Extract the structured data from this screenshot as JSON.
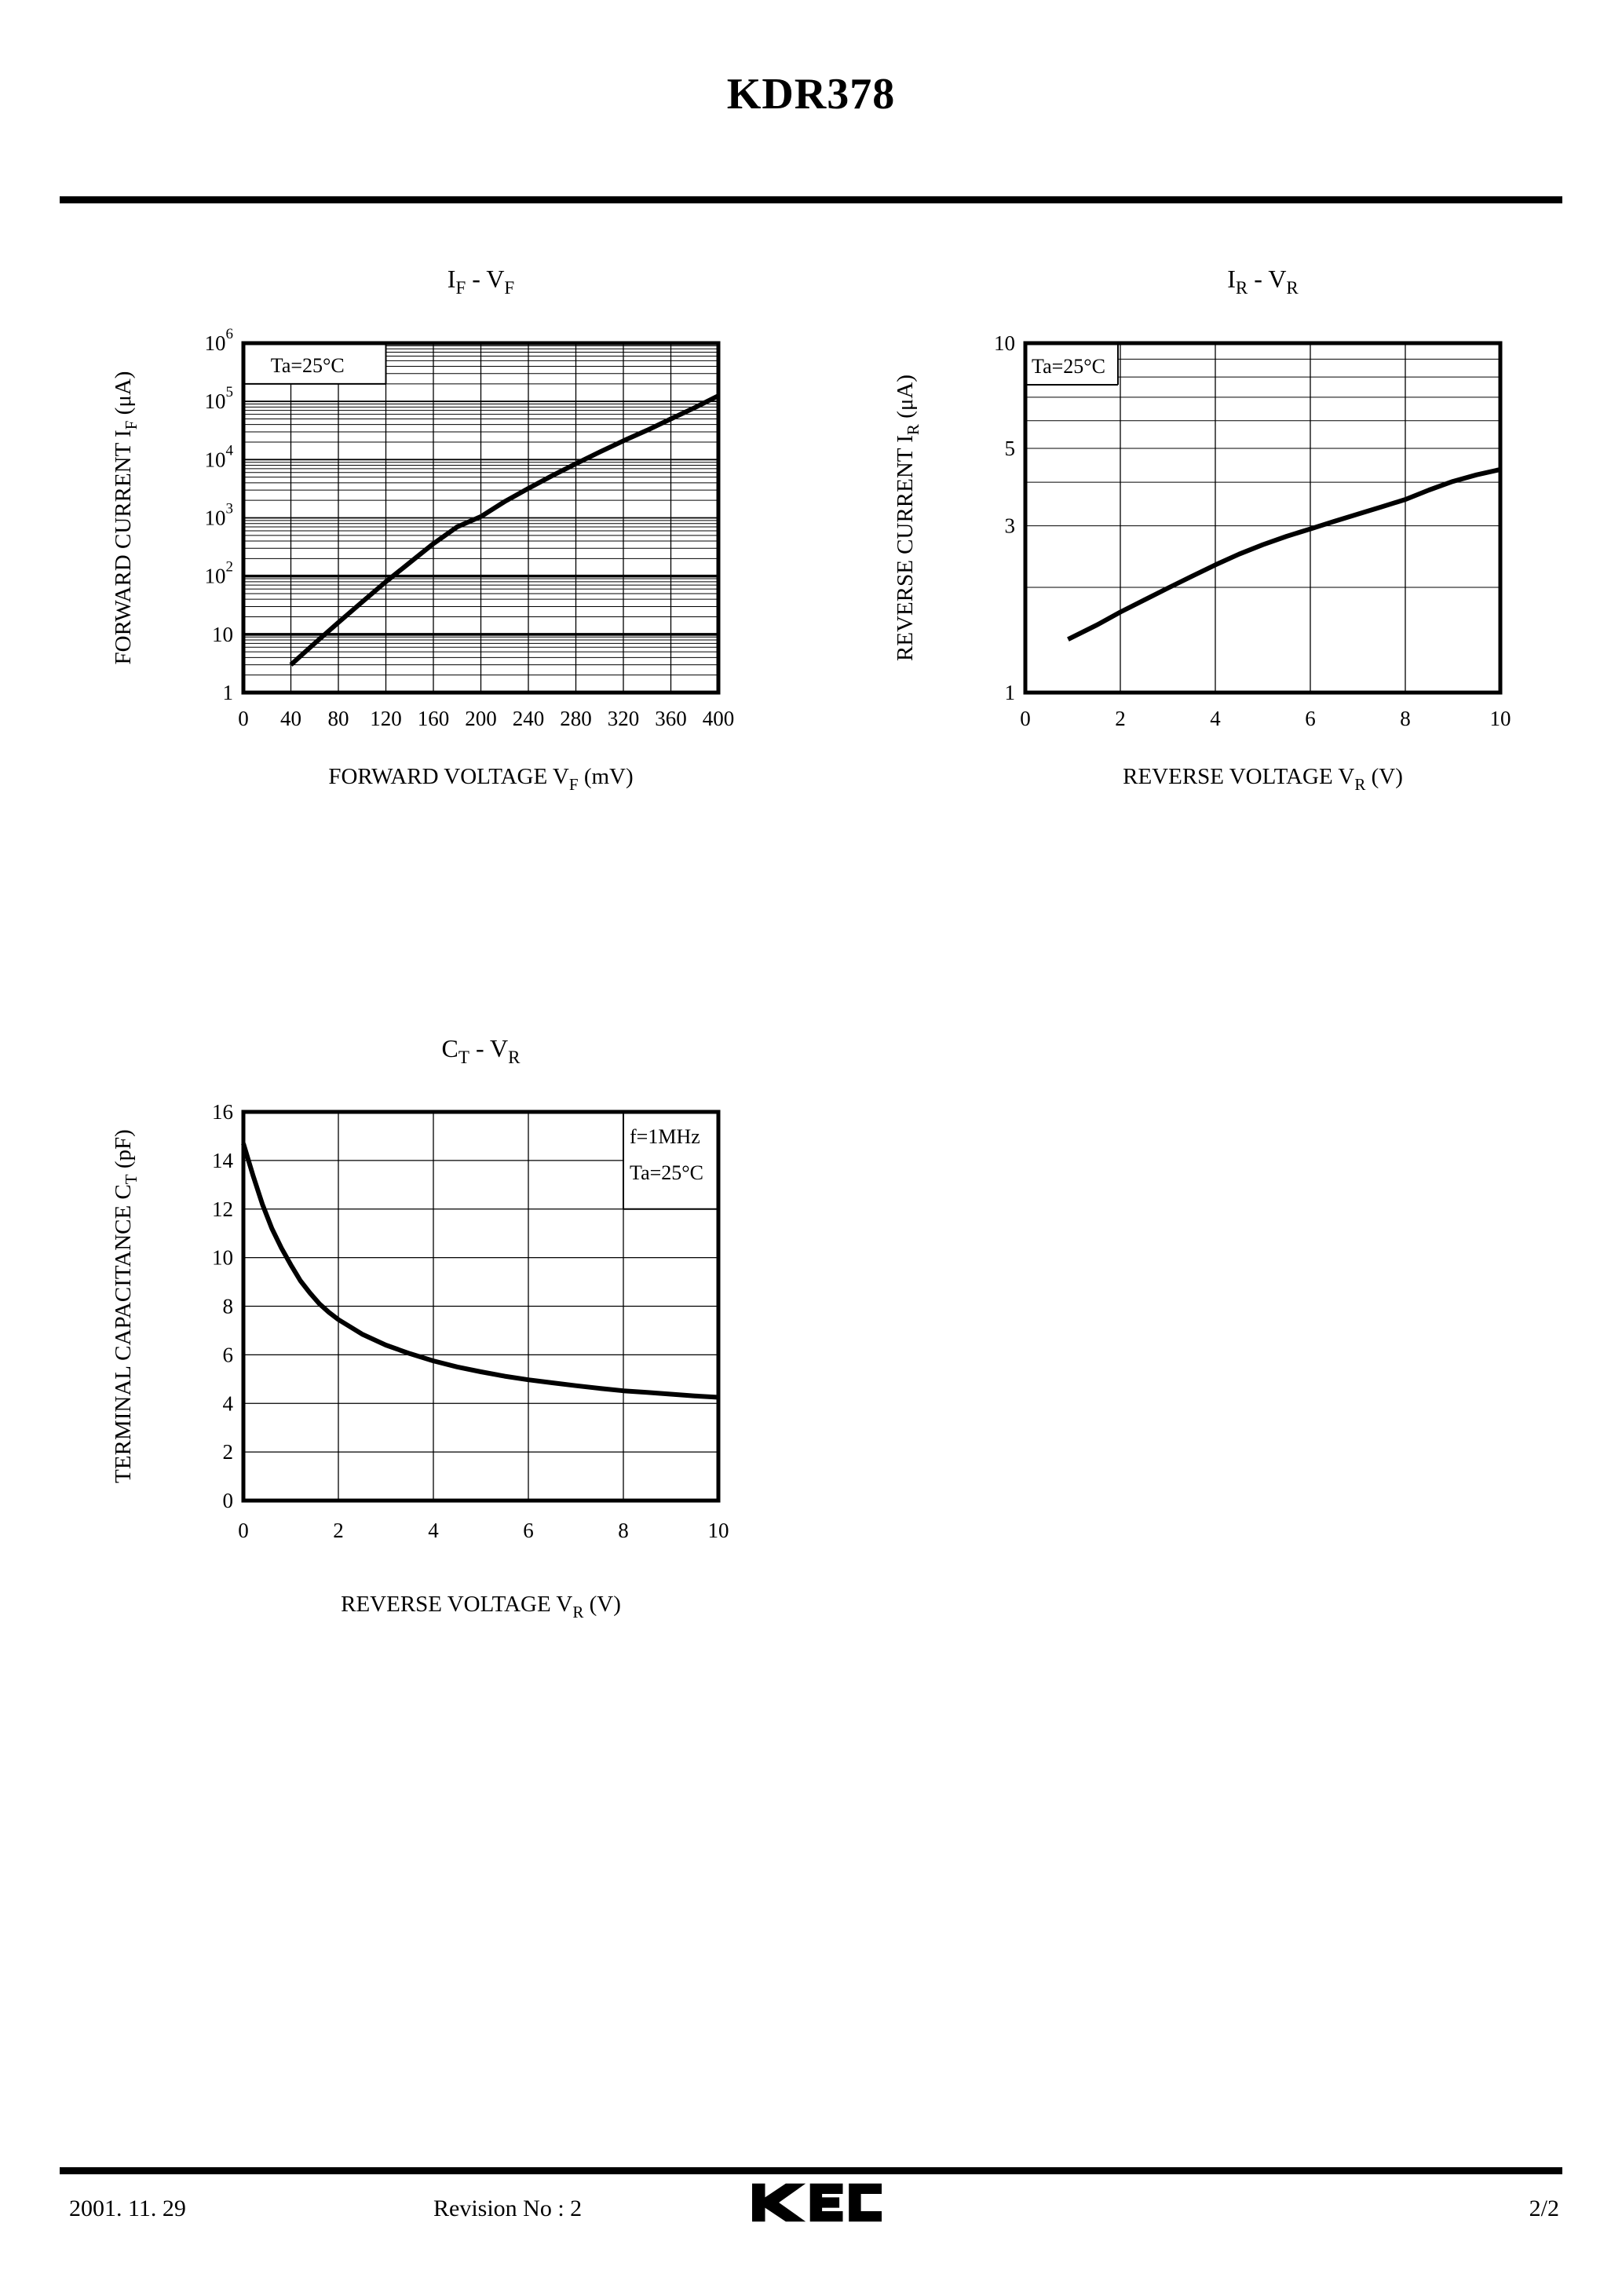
{
  "doc": {
    "title": "KDR378",
    "date": "2001. 11. 29",
    "revision": "Revision No : 2",
    "logo": "KEC",
    "page": "2/2"
  },
  "chart_data": [
    {
      "id": "if-vf",
      "type": "line",
      "title_parts": [
        [
          "I",
          ""
        ],
        [
          "F",
          "sub"
        ],
        [
          "  -  ",
          ""
        ],
        [
          "V",
          ""
        ],
        [
          "F",
          "sub"
        ]
      ],
      "xlabel_parts": [
        [
          "FORWARD VOLTAGE V",
          ""
        ],
        [
          "F",
          "sub"
        ],
        [
          "  (mV)",
          ""
        ]
      ],
      "ylabel_parts": [
        [
          "FORWARD CURRENT I",
          ""
        ],
        [
          "F",
          "sub"
        ],
        [
          "  (μA)",
          ""
        ]
      ],
      "xlim": [
        0,
        400
      ],
      "x_ticks": [
        {
          "v": 0,
          "t": "0"
        },
        {
          "v": 40,
          "t": "40"
        },
        {
          "v": 80,
          "t": "80"
        },
        {
          "v": 120,
          "t": "120"
        },
        {
          "v": 160,
          "t": "160"
        },
        {
          "v": 200,
          "t": "200"
        },
        {
          "v": 240,
          "t": "240"
        },
        {
          "v": 280,
          "t": "280"
        },
        {
          "v": 320,
          "t": "320"
        },
        {
          "v": 360,
          "t": "360"
        },
        {
          "v": 400,
          "t": "400"
        }
      ],
      "x_grid": [
        40,
        80,
        120,
        160,
        200,
        240,
        280,
        320,
        360
      ],
      "y_scale": "log",
      "ylim": [
        1,
        1000000
      ],
      "y_ticks": [
        {
          "v": 1000000,
          "t": "10",
          "sup": "6"
        },
        {
          "v": 100000,
          "t": "10",
          "sup": "5"
        },
        {
          "v": 10000,
          "t": "10",
          "sup": "4"
        },
        {
          "v": 1000,
          "t": "10",
          "sup": "3"
        },
        {
          "v": 100,
          "t": "10",
          "sup": "2"
        },
        {
          "v": 10,
          "t": "10"
        },
        {
          "v": 1,
          "t": "1"
        }
      ],
      "y_major_grid": [
        10,
        100,
        1000,
        10000,
        100000
      ],
      "y_thick_grid": [
        10,
        100
      ],
      "log_minor_grid": true,
      "annotation": {
        "x": [
          0,
          120
        ],
        "y": [
          200000,
          1000000
        ],
        "lines": [
          "Ta=25°C"
        ],
        "borders": "rb"
      },
      "series": [
        {
          "name": "IF",
          "points": [
            [
              40,
              3
            ],
            [
              60,
              7
            ],
            [
              80,
              16
            ],
            [
              100,
              36
            ],
            [
              120,
              80
            ],
            [
              140,
              170
            ],
            [
              160,
              360
            ],
            [
              180,
              700
            ],
            [
              200,
              1050
            ],
            [
              220,
              1900
            ],
            [
              240,
              3200
            ],
            [
              260,
              5300
            ],
            [
              280,
              8500
            ],
            [
              300,
              13500
            ],
            [
              320,
              21000
            ],
            [
              340,
              32000
            ],
            [
              360,
              50000
            ],
            [
              380,
              78000
            ],
            [
              400,
              125000
            ]
          ]
        }
      ]
    },
    {
      "id": "ir-vr",
      "type": "line",
      "title_parts": [
        [
          "I",
          ""
        ],
        [
          "R",
          "sub"
        ],
        [
          "  -  ",
          ""
        ],
        [
          "V",
          ""
        ],
        [
          "R",
          "sub"
        ]
      ],
      "xlabel_parts": [
        [
          "REVERSE VOLTAGE V",
          ""
        ],
        [
          "R",
          "sub"
        ],
        [
          "  (V)",
          ""
        ]
      ],
      "ylabel_parts": [
        [
          "REVERSE CURRENT I",
          ""
        ],
        [
          "R",
          "sub"
        ],
        [
          "  (μA)",
          ""
        ]
      ],
      "xlim": [
        0,
        10
      ],
      "x_ticks": [
        {
          "v": 0,
          "t": "0"
        },
        {
          "v": 2,
          "t": "2"
        },
        {
          "v": 4,
          "t": "4"
        },
        {
          "v": 6,
          "t": "6"
        },
        {
          "v": 8,
          "t": "8"
        },
        {
          "v": 10,
          "t": "10"
        }
      ],
      "x_grid": [
        2,
        4,
        6,
        8
      ],
      "y_scale": "log",
      "ylim": [
        1,
        10
      ],
      "y_ticks": [
        {
          "v": 10,
          "t": "10"
        },
        {
          "v": 5,
          "t": "5"
        },
        {
          "v": 3,
          "t": "3"
        },
        {
          "v": 1,
          "t": "1"
        }
      ],
      "y_major_grid": [],
      "y_thick_grid": [],
      "log_minor_grid": true,
      "annotation": {
        "x": [
          0,
          1.95
        ],
        "y": [
          7.6,
          10
        ],
        "lines": [
          "Ta=25°C"
        ],
        "borders": "rb"
      },
      "series": [
        {
          "name": "IR",
          "points": [
            [
              0.9,
              1.42
            ],
            [
              1.5,
              1.56
            ],
            [
              2,
              1.7
            ],
            [
              2.5,
              1.84
            ],
            [
              3,
              1.99
            ],
            [
              3.5,
              2.15
            ],
            [
              4,
              2.32
            ],
            [
              4.5,
              2.49
            ],
            [
              5,
              2.65
            ],
            [
              5.5,
              2.8
            ],
            [
              6,
              2.94
            ],
            [
              6.5,
              3.09
            ],
            [
              7,
              3.24
            ],
            [
              7.5,
              3.4
            ],
            [
              8,
              3.57
            ],
            [
              8.5,
              3.8
            ],
            [
              9,
              4.02
            ],
            [
              9.5,
              4.2
            ],
            [
              10,
              4.35
            ]
          ]
        }
      ]
    },
    {
      "id": "ct-vr",
      "type": "line",
      "title_parts": [
        [
          "C",
          ""
        ],
        [
          "T",
          "sub"
        ],
        [
          "  -  ",
          ""
        ],
        [
          "V",
          ""
        ],
        [
          "R",
          "sub"
        ]
      ],
      "xlabel_parts": [
        [
          "REVERSE VOLTAGE V",
          ""
        ],
        [
          "R",
          "sub"
        ],
        [
          "  (V)",
          ""
        ]
      ],
      "ylabel_parts": [
        [
          "TERMINAL CAPACITANCE C",
          ""
        ],
        [
          "T",
          "sub"
        ],
        [
          "  (pF)",
          ""
        ]
      ],
      "xlim": [
        0,
        10
      ],
      "x_ticks": [
        {
          "v": 0,
          "t": "0"
        },
        {
          "v": 2,
          "t": "2"
        },
        {
          "v": 4,
          "t": "4"
        },
        {
          "v": 6,
          "t": "6"
        },
        {
          "v": 8,
          "t": "8"
        },
        {
          "v": 10,
          "t": "10"
        }
      ],
      "x_grid": [
        2,
        4,
        6,
        8
      ],
      "y_scale": "linear",
      "ylim": [
        0,
        16
      ],
      "y_ticks": [
        {
          "v": 16,
          "t": "16"
        },
        {
          "v": 14,
          "t": "14"
        },
        {
          "v": 12,
          "t": "12"
        },
        {
          "v": 10,
          "t": "10"
        },
        {
          "v": 8,
          "t": "8"
        },
        {
          "v": 6,
          "t": "6"
        },
        {
          "v": 4,
          "t": "4"
        },
        {
          "v": 2,
          "t": "2"
        },
        {
          "v": 0,
          "t": "0"
        }
      ],
      "y_grid": [
        2,
        4,
        6,
        8,
        10,
        12,
        14
      ],
      "annotation": {
        "x": [
          8,
          10
        ],
        "y": [
          12,
          16
        ],
        "lines": [
          "f=1MHz",
          "Ta=25°C"
        ],
        "borders": "lb"
      },
      "series": [
        {
          "name": "CT",
          "points": [
            [
              0,
              14.7
            ],
            [
              0.2,
              13.4
            ],
            [
              0.4,
              12.2
            ],
            [
              0.6,
              11.2
            ],
            [
              0.8,
              10.4
            ],
            [
              1,
              9.7
            ],
            [
              1.2,
              9.05
            ],
            [
              1.4,
              8.55
            ],
            [
              1.6,
              8.1
            ],
            [
              1.8,
              7.75
            ],
            [
              2,
              7.45
            ],
            [
              2.5,
              6.85
            ],
            [
              3,
              6.4
            ],
            [
              3.5,
              6.05
            ],
            [
              4,
              5.75
            ],
            [
              4.5,
              5.5
            ],
            [
              5,
              5.3
            ],
            [
              5.5,
              5.12
            ],
            [
              6,
              4.97
            ],
            [
              6.5,
              4.85
            ],
            [
              7,
              4.73
            ],
            [
              7.5,
              4.62
            ],
            [
              8,
              4.52
            ],
            [
              8.5,
              4.45
            ],
            [
              9,
              4.38
            ],
            [
              9.5,
              4.31
            ],
            [
              10,
              4.25
            ]
          ]
        }
      ]
    }
  ]
}
